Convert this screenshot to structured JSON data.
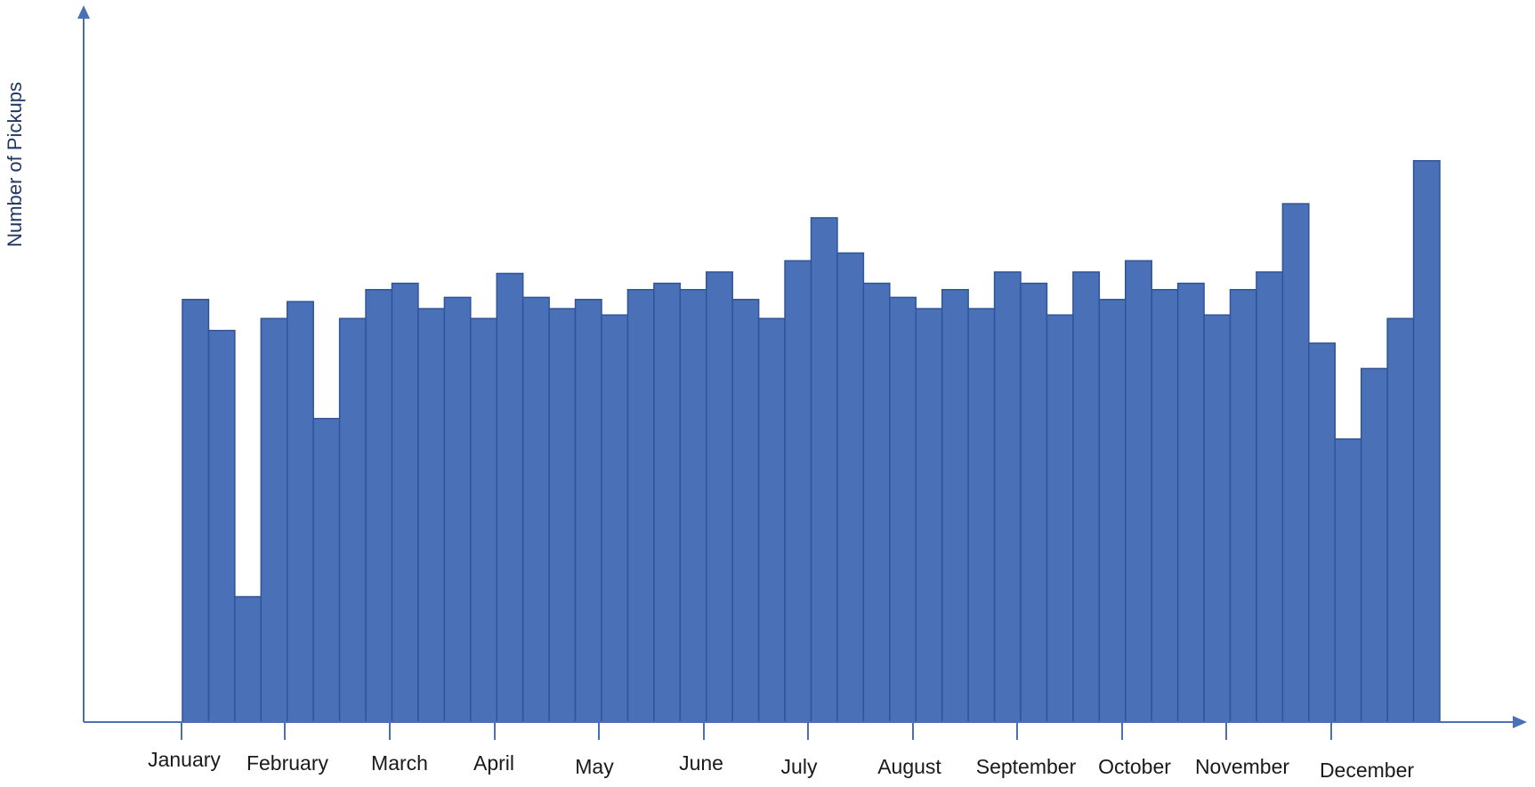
{
  "chart_data": {
    "type": "bar",
    "title": "",
    "xlabel": "",
    "ylabel": "Number of Pickups",
    "y_ticks_shown": false,
    "grid": false,
    "legend": "none",
    "bar_color": "#4a70b8",
    "bar_edge_color": "#2f5597",
    "axis_color": "#4a70b8",
    "ylim": [
      0,
      100
    ],
    "month_labels": [
      "January",
      "February",
      "March",
      "April",
      "May",
      "June",
      "July",
      "August",
      "September",
      "October",
      "November",
      "December"
    ],
    "bars_per_month": 4,
    "values": [
      60,
      55.6,
      17.8,
      57.3,
      59.7,
      43.1,
      57.3,
      61.4,
      62.3,
      58.7,
      60.3,
      57.3,
      63.7,
      60.3,
      58.7,
      60,
      57.8,
      61.4,
      62.3,
      61.4,
      63.9,
      60,
      57.3,
      65.5,
      71.6,
      66.6,
      62.3,
      60.3,
      58.7,
      61.4,
      58.7,
      63.9,
      62.3,
      57.8,
      63.9,
      60,
      65.5,
      61.4,
      62.3,
      57.8,
      61.4,
      63.9,
      73.6,
      53.8,
      40.2,
      50.2,
      57.3,
      79.7
    ]
  }
}
